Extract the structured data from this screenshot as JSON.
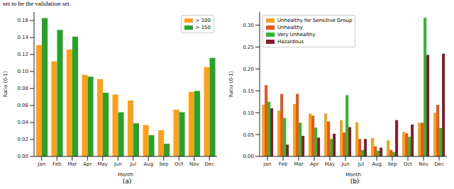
{
  "caption": "set to be the validation set.",
  "chart_data": [
    {
      "type": "bar",
      "title": "(a)",
      "x_label": "Month",
      "y_label": "Ratio (0-1)",
      "categories": [
        "Jan",
        "Feb",
        "Mar",
        "Apr",
        "May",
        "Jun",
        "Jul",
        "Aug",
        "Sep",
        "Oct",
        "Nov",
        "Dec"
      ],
      "series": [
        {
          "name": "> 100",
          "color": "#ff9f1a",
          "values": [
            0.131,
            0.112,
            0.126,
            0.096,
            0.091,
            0.073,
            0.066,
            0.037,
            0.031,
            0.055,
            0.076,
            0.105
          ]
        },
        {
          "name": "> 150",
          "color": "#27a327",
          "values": [
            0.163,
            0.149,
            0.141,
            0.094,
            0.075,
            0.052,
            0.039,
            0.025,
            0.015,
            0.052,
            0.077,
            0.116
          ]
        }
      ],
      "ylim": [
        0,
        0.17
      ],
      "yticks": [
        {
          "value": 0,
          "label": "0.00"
        },
        {
          "value": 0.02,
          "label": "0.02"
        },
        {
          "value": 0.04,
          "label": "0.04"
        },
        {
          "value": 0.06,
          "label": "0.06"
        },
        {
          "value": 0.08,
          "label": "0.08"
        },
        {
          "value": 0.1,
          "label": "0.10"
        },
        {
          "value": 0.12,
          "label": "0.12"
        },
        {
          "value": 0.14,
          "label": "0.14"
        },
        {
          "value": 0.16,
          "label": "0.16"
        }
      ],
      "grid": false,
      "legend": "upper right"
    },
    {
      "type": "bar",
      "title": "(b)",
      "x_label": "Month",
      "y_label": "Ratio (0-1)",
      "categories": [
        "Jan",
        "Feb",
        "Mar",
        "Apr",
        "May",
        "Jun",
        "Jul",
        "Aug",
        "Sep",
        "Oct",
        "Nov",
        "Dec"
      ],
      "series": [
        {
          "name": "Unhealthy for Sensitive Group",
          "color": "#f7a11a",
          "values": [
            0.118,
            0.105,
            0.12,
            0.098,
            0.098,
            0.083,
            0.078,
            0.042,
            0.037,
            0.056,
            0.077,
            0.1
          ]
        },
        {
          "name": "Unhealthy",
          "color": "#e8561c",
          "values": [
            0.163,
            0.143,
            0.143,
            0.093,
            0.08,
            0.055,
            0.04,
            0.023,
            0.015,
            0.053,
            0.077,
            0.118
          ]
        },
        {
          "name": "Very Unhealthy",
          "color": "#2db82d",
          "values": [
            0.125,
            0.088,
            0.077,
            0.066,
            0.04,
            0.14,
            0.015,
            0.013,
            0.01,
            0.045,
            0.317,
            0.065
          ]
        },
        {
          "name": "Hazardous",
          "color": "#8b1a2e",
          "values": [
            0.11,
            0.027,
            0.047,
            0.043,
            0.052,
            0.067,
            0.04,
            0.02,
            0.083,
            0.073,
            0.232,
            0.235
          ]
        }
      ],
      "ylim": [
        0,
        0.33
      ],
      "yticks": [
        {
          "value": 0,
          "label": "0.00"
        },
        {
          "value": 0.05,
          "label": "0.05"
        },
        {
          "value": 0.1,
          "label": "0.10"
        },
        {
          "value": 0.15,
          "label": "0.15"
        },
        {
          "value": 0.2,
          "label": "0.20"
        },
        {
          "value": 0.25,
          "label": "0.25"
        },
        {
          "value": 0.3,
          "label": "0.30"
        }
      ],
      "grid": false,
      "legend": "upper left"
    }
  ]
}
